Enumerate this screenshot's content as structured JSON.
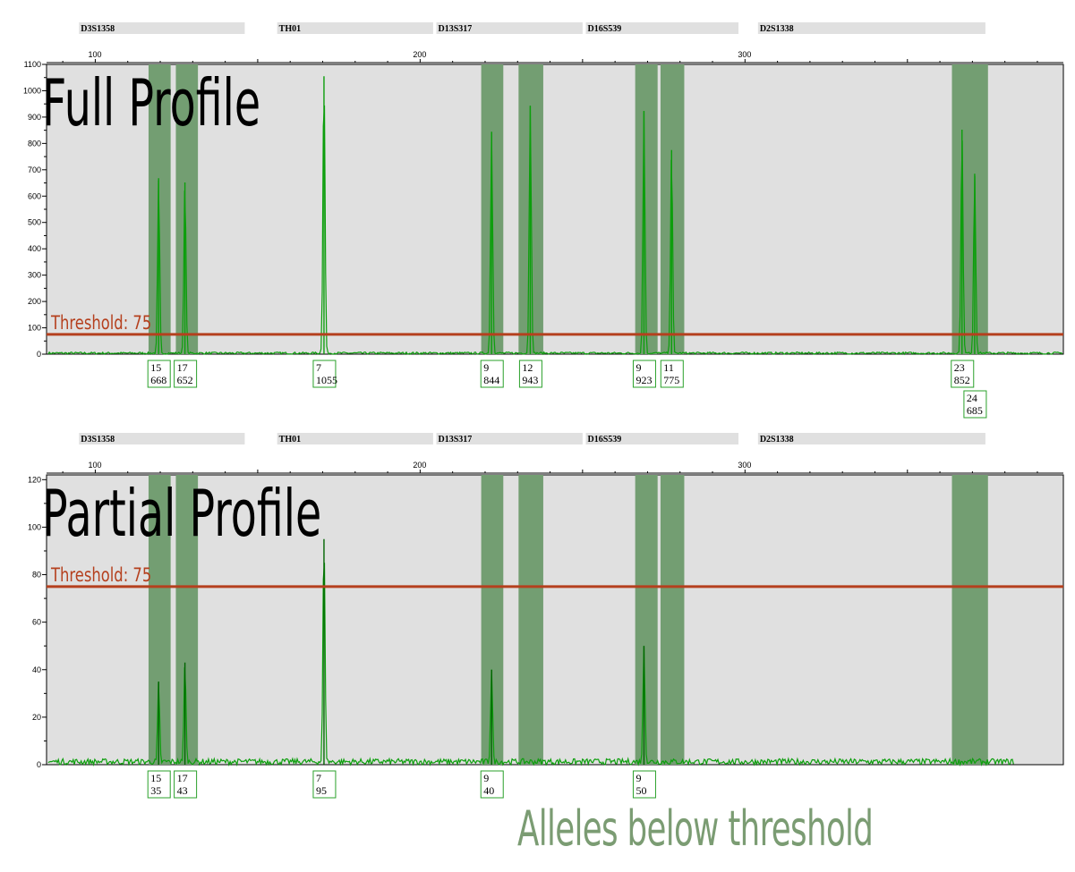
{
  "footnote": "Alleles below threshold",
  "colors": {
    "plot_bg": "#e0e0e0",
    "bin": "#739e72",
    "marker_bar": "#e0e0e0",
    "threshold": "#b5401e",
    "trace": "#0c9e0c",
    "trace_dark": "#006400",
    "label_border": "#2aa02a",
    "footnote": "#7b9c73"
  },
  "markers": [
    {
      "name": "D3S1358",
      "start": 95,
      "end": 146
    },
    {
      "name": "TH01",
      "start": 156,
      "end": 204
    },
    {
      "name": "D13S317",
      "start": 205,
      "end": 250
    },
    {
      "name": "D16S539",
      "start": 251,
      "end": 298
    },
    {
      "name": "D2S1338",
      "start": 304,
      "end": 374
    }
  ],
  "bins": [
    [
      116.4,
      123.2
    ],
    [
      124.8,
      131.6
    ],
    [
      218.8,
      225.6
    ],
    [
      230.3,
      237.9
    ],
    [
      266.2,
      273.1
    ],
    [
      274.0,
      281.3
    ],
    [
      363.7,
      374.8
    ]
  ],
  "x_ticks": [
    100,
    200,
    300
  ],
  "chart_data": [
    {
      "type": "line",
      "title": "Full Profile",
      "xlim": [
        85,
        398
      ],
      "ylim": [
        0,
        1100
      ],
      "y_ticks": [
        0,
        100,
        200,
        300,
        400,
        500,
        600,
        700,
        800,
        900,
        1000,
        1100
      ],
      "threshold": {
        "label": "Threshold: 75",
        "value": 75
      },
      "peaks": [
        {
          "allele": "15",
          "size": 119.5,
          "height": 668
        },
        {
          "allele": "17",
          "size": 127.6,
          "height": 652
        },
        {
          "allele": "7",
          "size": 170.4,
          "height": 1055
        },
        {
          "allele": "9",
          "size": 222.0,
          "height": 844
        },
        {
          "allele": "12",
          "size": 233.9,
          "height": 943
        },
        {
          "allele": "9",
          "size": 268.9,
          "height": 923
        },
        {
          "allele": "11",
          "size": 277.4,
          "height": 775
        },
        {
          "allele": "23",
          "size": 366.8,
          "height": 852
        },
        {
          "allele": "24",
          "size": 370.7,
          "height": 685
        }
      ]
    },
    {
      "type": "line",
      "title": "Partial Profile",
      "xlim": [
        85,
        398
      ],
      "ylim": [
        0,
        122
      ],
      "y_ticks": [
        0,
        20,
        40,
        60,
        80,
        100,
        120
      ],
      "threshold": {
        "label": "Threshold: 75",
        "value": 75
      },
      "peaks": [
        {
          "allele": "15",
          "size": 119.5,
          "height": 35
        },
        {
          "allele": "17",
          "size": 127.6,
          "height": 43
        },
        {
          "allele": "7",
          "size": 170.4,
          "height": 95
        },
        {
          "allele": "9",
          "size": 222.0,
          "height": 40
        },
        {
          "allele": "9",
          "size": 268.9,
          "height": 50
        }
      ]
    }
  ]
}
